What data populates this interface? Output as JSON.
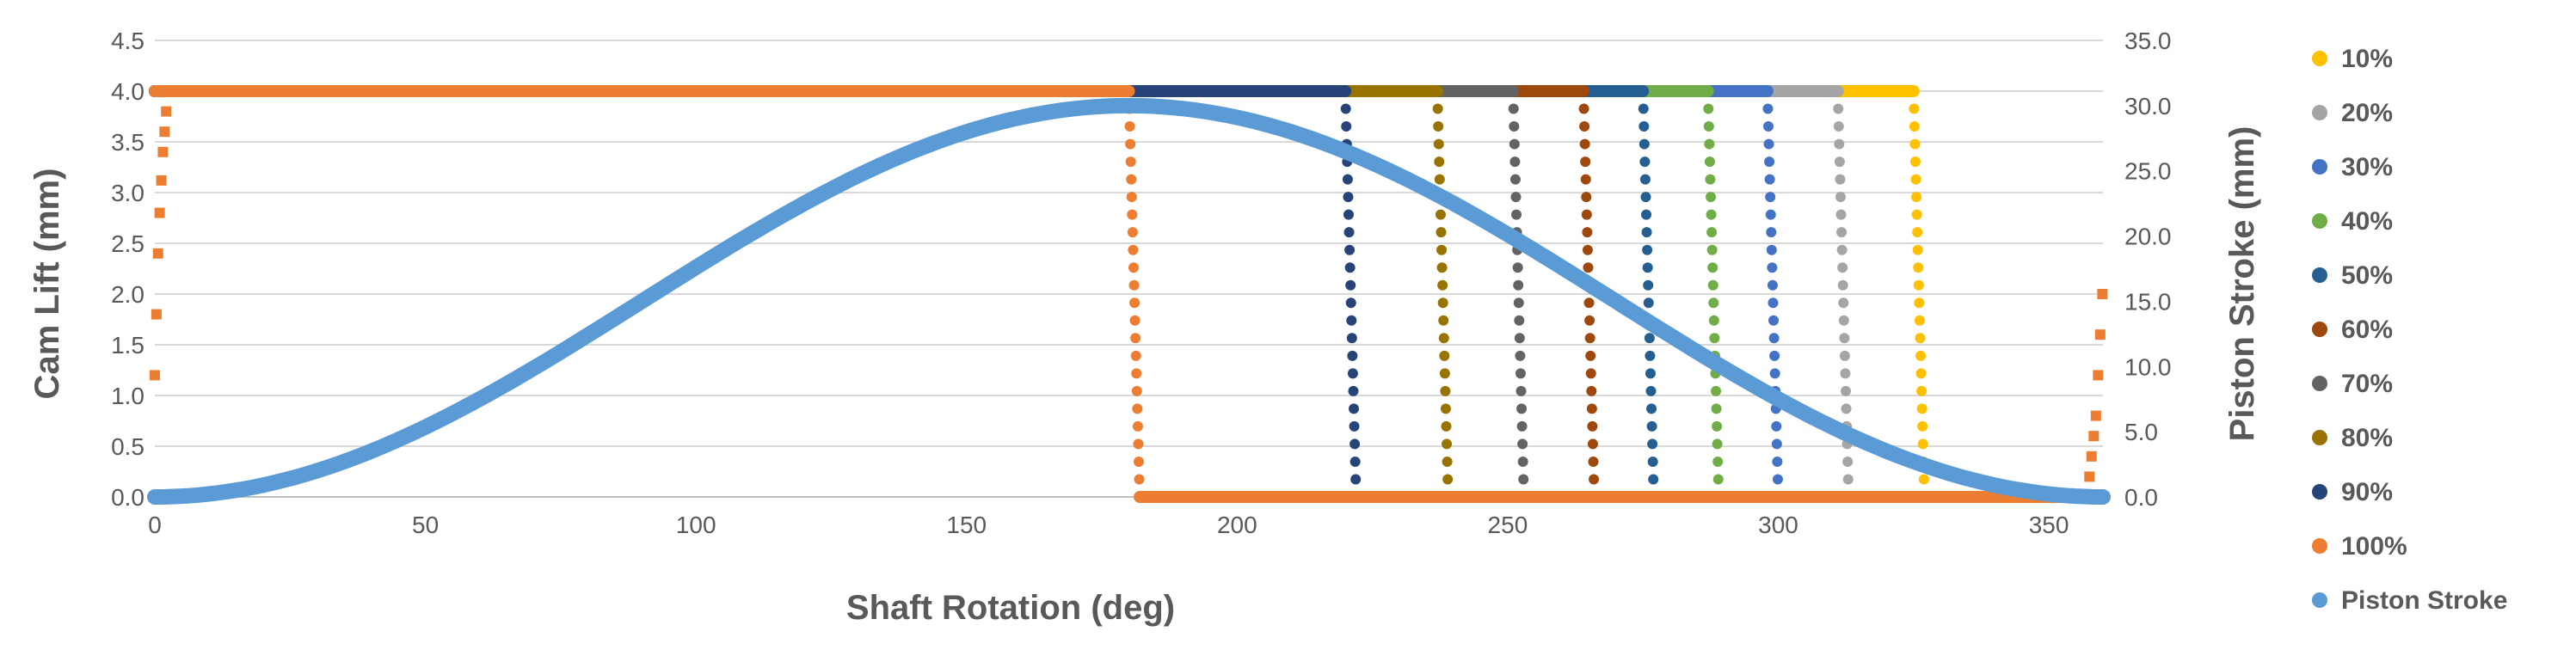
{
  "chart_data": {
    "type": "scatter",
    "title": "",
    "xlabel": "Shaft Rotation (deg)",
    "ylabel": "Cam Lift (mm)",
    "y2label": "Piston Stroke (mm)",
    "xlim": [
      0,
      360
    ],
    "ylim": [
      0,
      4.5
    ],
    "y2lim": [
      0,
      35
    ],
    "x_ticks": [
      "0",
      "50",
      "100",
      "150",
      "200",
      "250",
      "300",
      "350"
    ],
    "y_ticks": [
      "0.0",
      "0.5",
      "1.0",
      "1.5",
      "2.0",
      "2.5",
      "3.0",
      "3.5",
      "4.0",
      "4.5"
    ],
    "y2_ticks": [
      "0.0",
      "5.0",
      "10.0",
      "15.0",
      "20.0",
      "25.0",
      "30.0",
      "35.0"
    ],
    "grid": "horizontal",
    "legend_position": "right",
    "cam_lift_max": 4.0,
    "piston_stroke_max": 30.0,
    "cam_series": [
      {
        "name": "10%",
        "color": "#FFC000",
        "close_deg": 325
      },
      {
        "name": "20%",
        "color": "#A5A5A5",
        "close_deg": 311
      },
      {
        "name": "30%",
        "color": "#4472C4",
        "close_deg": 298
      },
      {
        "name": "40%",
        "color": "#70AD47",
        "close_deg": 287
      },
      {
        "name": "50%",
        "color": "#255E91",
        "close_deg": 275
      },
      {
        "name": "60%",
        "color": "#9E480E",
        "close_deg": 264
      },
      {
        "name": "70%",
        "color": "#636363",
        "close_deg": 251
      },
      {
        "name": "80%",
        "color": "#997300",
        "close_deg": 237
      },
      {
        "name": "90%",
        "color": "#264478",
        "close_deg": 220
      },
      {
        "name": "100%",
        "color": "#ED7D31",
        "close_deg": 180
      }
    ],
    "piston_series": {
      "name": "Piston Stroke",
      "color": "#5B9BD5",
      "axis": "secondary",
      "shape": "sinusoidal",
      "peak_deg": 180
    }
  }
}
